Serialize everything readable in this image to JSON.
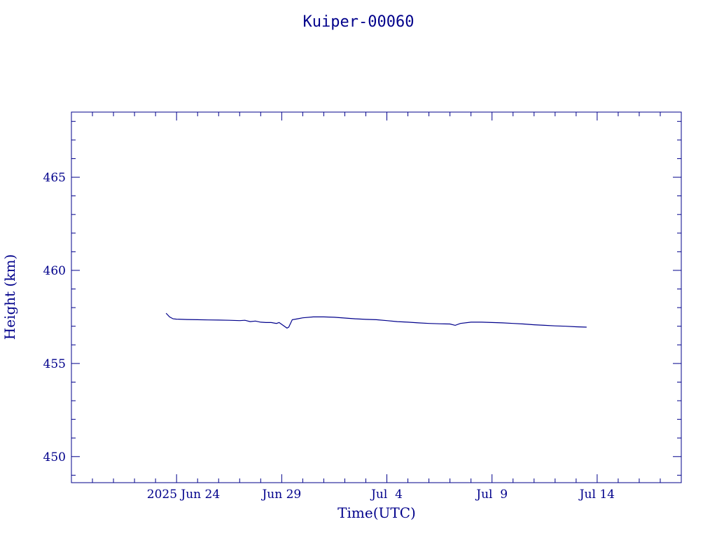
{
  "chart_data": {
    "type": "line",
    "title": "Kuiper-00060",
    "xlabel": "Time(UTC)",
    "ylabel": "Height (km)",
    "x_tick_labels": [
      "2025 Jun 24",
      "Jun 29",
      "Jul  4",
      "Jul  9",
      "Jul 14"
    ],
    "y_ticks": [
      450,
      455,
      460,
      465
    ],
    "xlim": [
      "2025-06-19T00:00",
      "2025-07-18T00:00"
    ],
    "ylim": [
      448.6,
      468.5
    ],
    "grid": false,
    "legend": "none",
    "color": "#00008b",
    "series": [
      {
        "x": [
          "2025-06-23T12:00",
          "2025-06-23T16:00",
          "2025-06-23T20:00",
          "2025-06-24T00:00",
          "2025-06-24T12:00",
          "2025-06-25T00:00",
          "2025-06-25T12:00",
          "2025-06-26T00:00",
          "2025-06-26T12:00",
          "2025-06-27T00:00",
          "2025-06-27T06:00",
          "2025-06-27T12:00",
          "2025-06-27T18:00",
          "2025-06-28T00:00",
          "2025-06-28T06:00",
          "2025-06-28T12:00",
          "2025-06-28T18:00",
          "2025-06-28T21:00",
          "2025-06-29T00:00",
          "2025-06-29T06:00",
          "2025-06-29T08:00",
          "2025-06-29T12:00",
          "2025-06-29T18:00",
          "2025-06-30T00:00",
          "2025-06-30T12:00",
          "2025-07-01T00:00",
          "2025-07-01T12:00",
          "2025-07-02T00:00",
          "2025-07-02T12:00",
          "2025-07-03T00:00",
          "2025-07-03T12:00",
          "2025-07-04T00:00",
          "2025-07-04T12:00",
          "2025-07-05T00:00",
          "2025-07-05T12:00",
          "2025-07-06T00:00",
          "2025-07-06T12:00",
          "2025-07-07T00:00",
          "2025-07-07T06:00",
          "2025-07-07T12:00",
          "2025-07-08T00:00",
          "2025-07-08T12:00",
          "2025-07-09T00:00",
          "2025-07-09T12:00",
          "2025-07-10T00:00",
          "2025-07-10T12:00",
          "2025-07-11T00:00",
          "2025-07-11T12:00",
          "2025-07-12T00:00",
          "2025-07-12T12:00",
          "2025-07-13T00:00",
          "2025-07-13T12:00"
        ],
        "y": [
          457.7,
          457.5,
          457.4,
          457.38,
          457.36,
          457.35,
          457.34,
          457.33,
          457.32,
          457.3,
          457.32,
          457.25,
          457.28,
          457.22,
          457.2,
          457.2,
          457.15,
          457.2,
          457.1,
          456.9,
          456.95,
          457.35,
          457.4,
          457.45,
          457.5,
          457.5,
          457.48,
          457.44,
          457.4,
          457.37,
          457.35,
          457.3,
          457.25,
          457.22,
          457.18,
          457.15,
          457.13,
          457.12,
          457.05,
          457.15,
          457.22,
          457.22,
          457.2,
          457.18,
          457.15,
          457.12,
          457.08,
          457.05,
          457.02,
          457.0,
          456.97,
          456.95
        ]
      }
    ]
  }
}
